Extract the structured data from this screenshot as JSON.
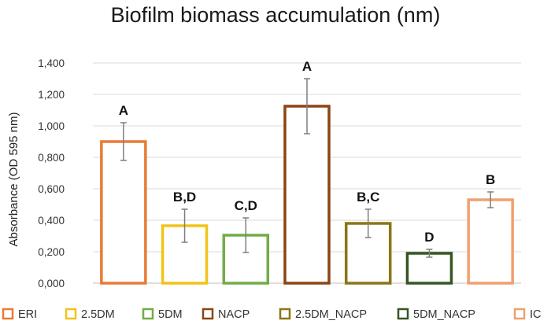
{
  "chart_data": {
    "type": "bar",
    "title": "Biofilm biomass accumulation (nm)",
    "xlabel": "",
    "ylabel": "Absorbance (OD 595 nm)",
    "ylim": [
      0,
      1.4
    ],
    "yticks": [
      "0,000",
      "0,200",
      "0,400",
      "0,600",
      "0,800",
      "1,000",
      "1,200",
      "1,400"
    ],
    "ytick_values": [
      0,
      0.2,
      0.4,
      0.6,
      0.8,
      1.0,
      1.2,
      1.4
    ],
    "grid": true,
    "legend_position": "bottom",
    "series": [
      {
        "name": "ERI",
        "value": 0.9,
        "error": 0.12,
        "label": "A",
        "color": "#E87B37"
      },
      {
        "name": "2.5DM",
        "value": 0.365,
        "error": 0.105,
        "label": "B,D",
        "color": "#F2C318"
      },
      {
        "name": "5DM",
        "value": 0.305,
        "error": 0.11,
        "label": "C,D",
        "color": "#70AD47"
      },
      {
        "name": "NACP",
        "value": 1.125,
        "error": 0.175,
        "label": "A",
        "color": "#8B4513"
      },
      {
        "name": "2.5DM_NACP",
        "value": 0.38,
        "error": 0.09,
        "label": "B,C",
        "color": "#8C7514"
      },
      {
        "name": "5DM_NACP",
        "value": 0.19,
        "error": 0.025,
        "label": "D",
        "color": "#375623"
      },
      {
        "name": "IC",
        "value": 0.53,
        "error": 0.05,
        "label": "B",
        "color": "#F0A070"
      }
    ]
  }
}
